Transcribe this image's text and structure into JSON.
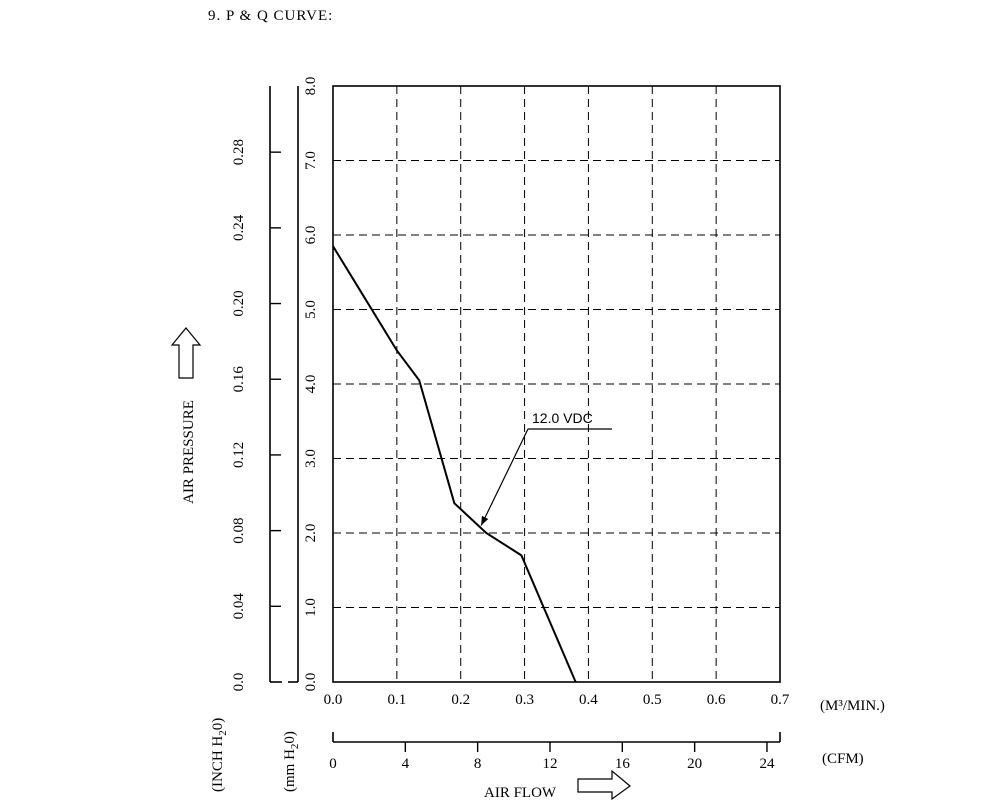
{
  "heading": "9. P & Q CURVE:",
  "chart_data": {
    "type": "line",
    "ylabel": "AIR PRESSURE",
    "xlabel": "AIR FLOW",
    "x_unit_primary": "(M³/MIN.)",
    "x_unit_secondary": "(CFM)",
    "y_unit_inch_parts": [
      "(INCH H",
      "2",
      "0)"
    ],
    "y_unit_mm_parts": [
      "(mm H",
      "2",
      "0)"
    ],
    "xlim": [
      0,
      0.7
    ],
    "ylim": [
      0,
      8
    ],
    "grid": true,
    "x_ticks": [
      0.0,
      0.1,
      0.2,
      0.3,
      0.4,
      0.5,
      0.6,
      0.7
    ],
    "x_tick_labels": [
      "0.0",
      "0.1",
      "0.2",
      "0.3",
      "0.4",
      "0.5",
      "0.6",
      "0.7"
    ],
    "cfm_ticks": [
      0,
      4,
      8,
      12,
      16,
      20,
      24
    ],
    "cfm_tick_labels": [
      "0",
      "4",
      "8",
      "12",
      "16",
      "20",
      "24"
    ],
    "mm_ticks": [
      0,
      1,
      2,
      3,
      4,
      5,
      6,
      7,
      8
    ],
    "mm_tick_labels": [
      "0.0",
      "1.0",
      "2.0",
      "3.0",
      "4.0",
      "5.0",
      "6.0",
      "7.0",
      "8.0"
    ],
    "inch_ticks": [
      0.0,
      0.04,
      0.08,
      0.12,
      0.16,
      0.2,
      0.24,
      0.28
    ],
    "inch_tick_labels": [
      "0.0",
      "0.04",
      "0.08",
      "0.12",
      "0.16",
      "0.20",
      "0.24",
      "0.28"
    ],
    "series": [
      {
        "name": "12.0 VDC",
        "x": [
          0.0,
          0.05,
          0.1,
          0.135,
          0.19,
          0.24,
          0.295,
          0.345,
          0.38
        ],
        "y": [
          5.85,
          5.15,
          4.45,
          4.05,
          2.4,
          2.0,
          1.7,
          0.7,
          0.0
        ]
      }
    ],
    "annotation": {
      "text": "12.0 VDC",
      "target": [
        0.232,
        2.1
      ]
    }
  }
}
